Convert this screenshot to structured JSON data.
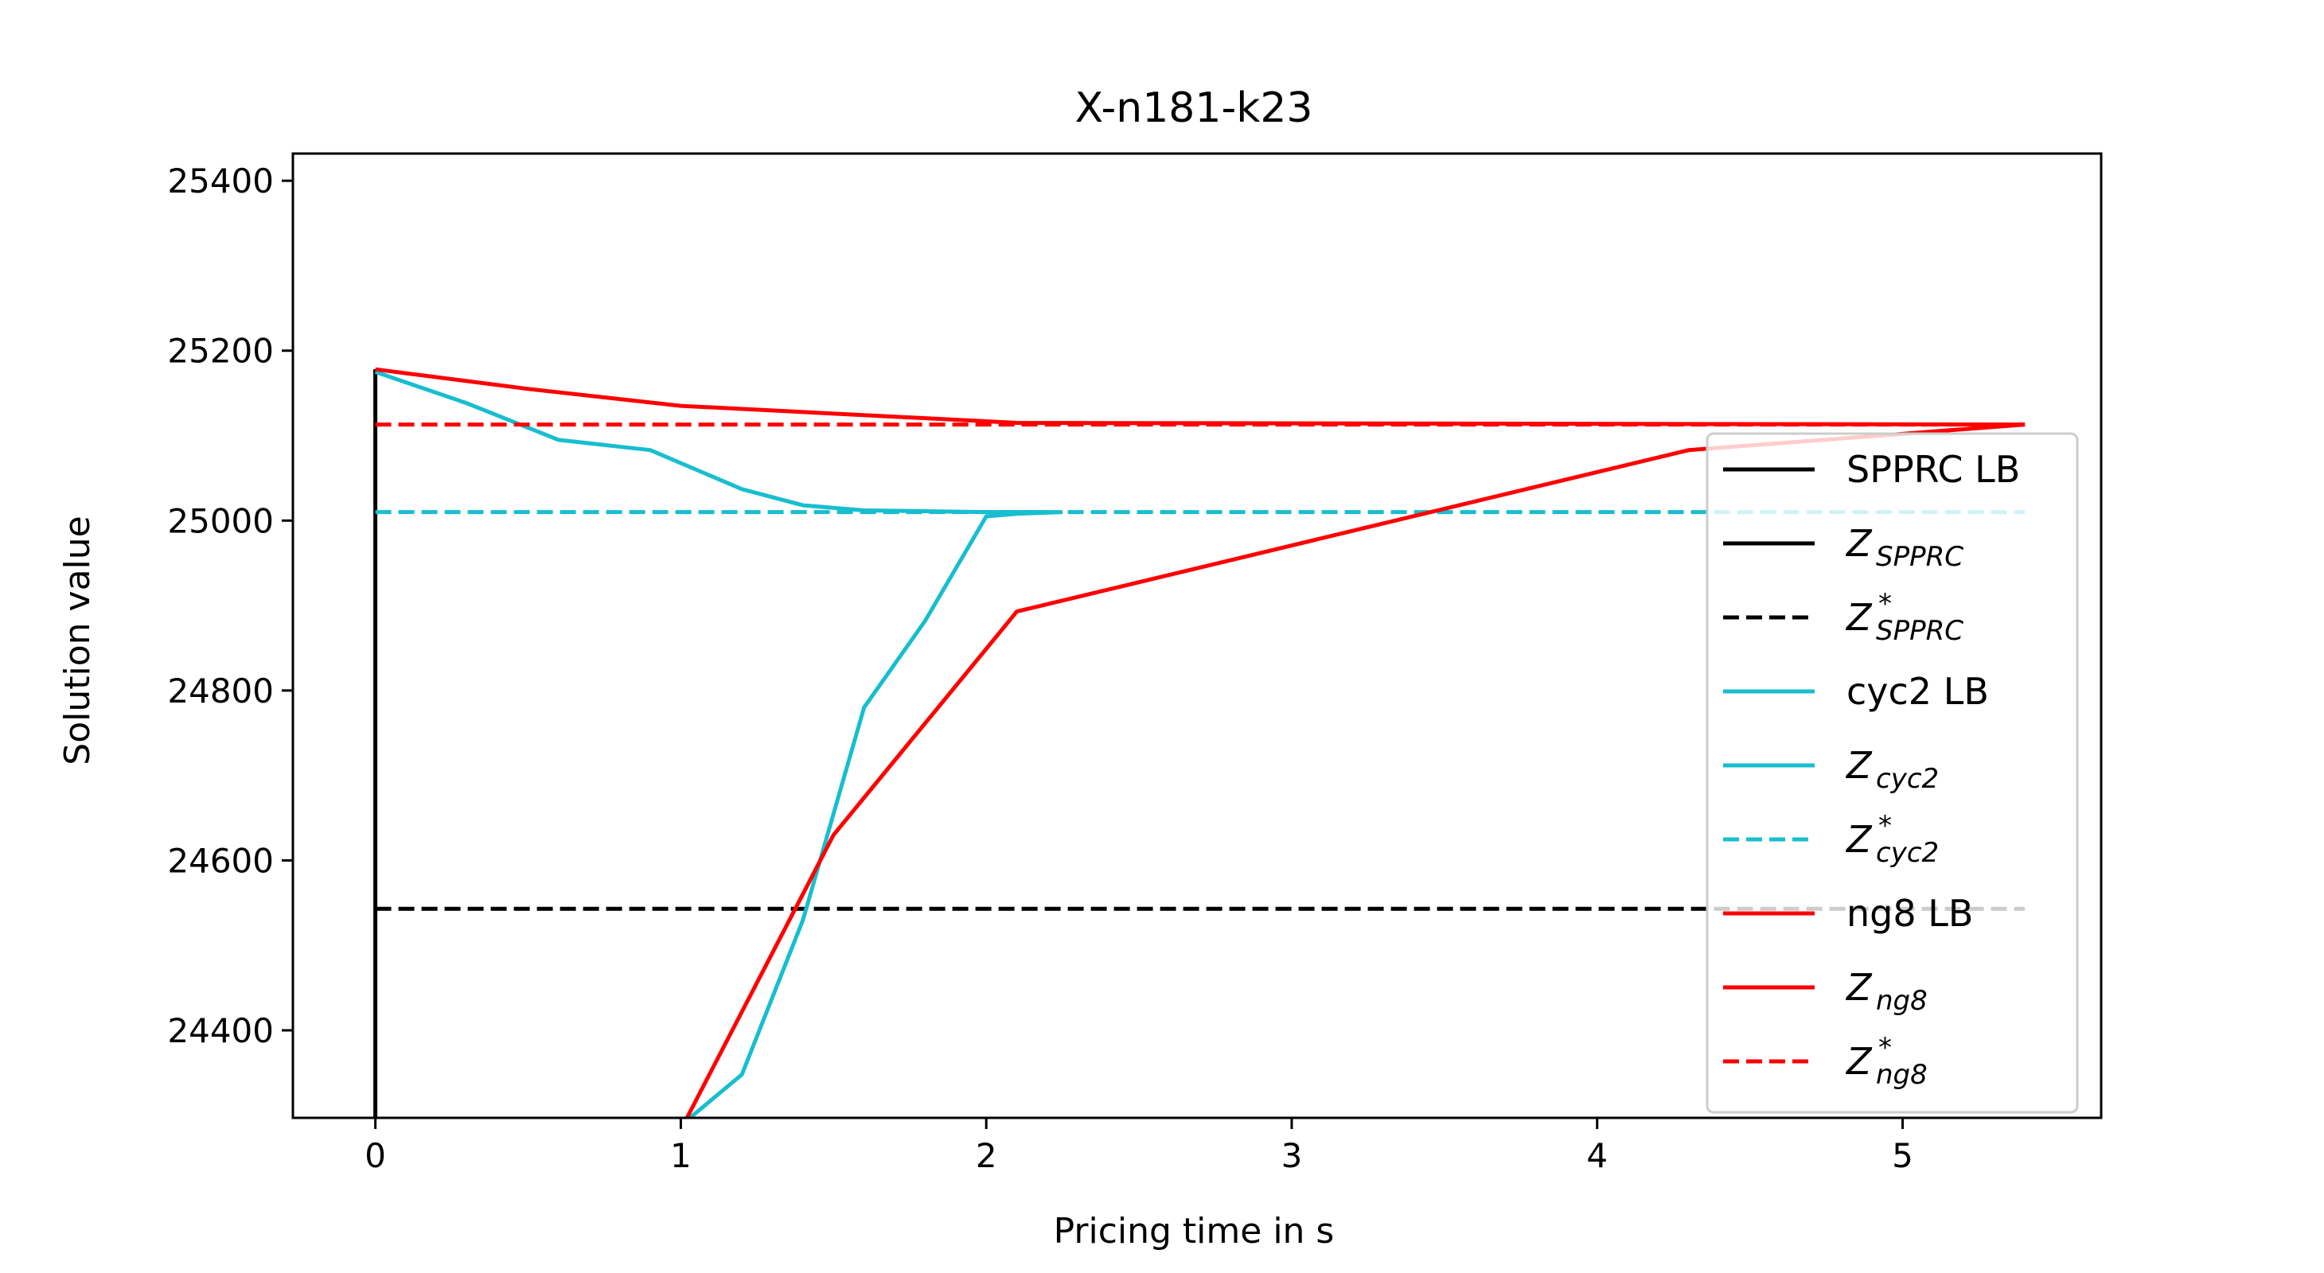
{
  "chart_data": {
    "type": "line",
    "title": "X-n181-k23",
    "xlabel": "Pricing time in s",
    "ylabel": "Solution value",
    "xlim": [
      -0.27,
      5.65
    ],
    "ylim": [
      24297,
      25432
    ],
    "xticks": [
      0,
      1,
      2,
      3,
      4,
      5
    ],
    "yticks": [
      24400,
      24600,
      24800,
      25000,
      25200,
      25400
    ],
    "grid": false,
    "legend_position": "right",
    "series": [
      {
        "name": "SPPRC LB",
        "color": "#000000",
        "style": "solid",
        "x": [
          0.0,
          0.0
        ],
        "y": [
          24297,
          25178
        ]
      },
      {
        "name": "Z_SPPRC",
        "color": "#000000",
        "style": "solid",
        "x": [
          0.0,
          0.0
        ],
        "y": [
          25178,
          25170
        ]
      },
      {
        "name": "Z*_SPPRC",
        "color": "#000000",
        "style": "dashed",
        "x": [
          0.0,
          5.4
        ],
        "y": [
          24543,
          24543
        ]
      },
      {
        "name": "cyc2 LB",
        "color": "#17becf",
        "style": "solid",
        "x": [
          1.03,
          1.2,
          1.4,
          1.6,
          1.8,
          2.0,
          2.1,
          2.25
        ],
        "y": [
          24297,
          24348,
          24530,
          24780,
          24882,
          25005,
          25008,
          25010
        ]
      },
      {
        "name": "Z_cyc2",
        "color": "#17becf",
        "style": "solid",
        "x": [
          0.0,
          0.3,
          0.6,
          0.9,
          1.2,
          1.4,
          1.6,
          2.0,
          2.2
        ],
        "y": [
          25175,
          25138,
          25095,
          25083,
          25037,
          25018,
          25012,
          25010,
          25010
        ]
      },
      {
        "name": "Z*_cyc2",
        "color": "#17becf",
        "style": "dashed",
        "x": [
          0.0,
          5.4
        ],
        "y": [
          25010,
          25010
        ]
      },
      {
        "name": "ng8 LB",
        "color": "#ff0000",
        "style": "solid",
        "x": [
          1.02,
          1.5,
          2.1,
          4.3,
          5.4
        ],
        "y": [
          24297,
          24630,
          24893,
          25083,
          25113
        ]
      },
      {
        "name": "Z_ng8",
        "color": "#ff0000",
        "style": "solid",
        "x": [
          0.0,
          0.5,
          1.0,
          2.1,
          5.4
        ],
        "y": [
          25178,
          25155,
          25135,
          25115,
          25113
        ]
      },
      {
        "name": "Z*_ng8",
        "color": "#ff0000",
        "style": "dashed",
        "x": [
          0.0,
          5.4
        ],
        "y": [
          25113,
          25113
        ]
      }
    ],
    "legend": [
      {
        "main": "SPPRC LB",
        "sub": "",
        "sup": "",
        "color": "#000000",
        "style": "solid"
      },
      {
        "main": "Z",
        "sub": "SPPRC",
        "sup": "",
        "color": "#000000",
        "style": "solid"
      },
      {
        "main": "Z",
        "sub": "SPPRC",
        "sup": "*",
        "color": "#000000",
        "style": "dashed"
      },
      {
        "main": "cyc2 LB",
        "sub": "",
        "sup": "",
        "color": "#17becf",
        "style": "solid"
      },
      {
        "main": "Z",
        "sub": "cyc2",
        "sup": "",
        "color": "#17becf",
        "style": "solid"
      },
      {
        "main": "Z",
        "sub": "cyc2",
        "sup": "*",
        "color": "#17becf",
        "style": "dashed"
      },
      {
        "main": "ng8 LB",
        "sub": "",
        "sup": "",
        "color": "#ff0000",
        "style": "solid"
      },
      {
        "main": "Z",
        "sub": "ng8",
        "sup": "",
        "color": "#ff0000",
        "style": "solid"
      },
      {
        "main": "Z",
        "sub": "ng8",
        "sup": "*",
        "color": "#ff0000",
        "style": "dashed"
      }
    ]
  }
}
